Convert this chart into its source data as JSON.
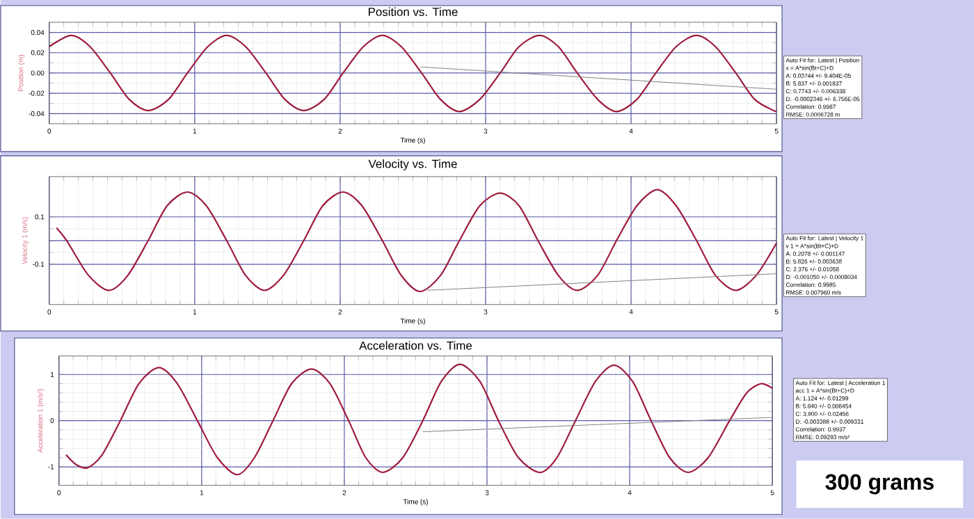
{
  "chart_data": [
    {
      "type": "line",
      "title": "Position vs. Time",
      "xlabel": "Time (s)",
      "ylabel": "Position (m)",
      "xlim": [
        0,
        5
      ],
      "xticks": [
        0,
        1,
        2,
        3,
        4,
        5
      ],
      "ylim": [
        -0.05,
        0.05
      ],
      "yticks": [
        -0.04,
        -0.02,
        {
          "value": 0,
          "label": "0.00"
        },
        0.02,
        0.04
      ],
      "grid": true,
      "marker": "none",
      "line_style": "solid",
      "series": [
        {
          "color": "#9e1b3c",
          "x": [
            0,
            0.15,
            0.28,
            0.42,
            0.55,
            0.68,
            0.82,
            0.95,
            1.09,
            1.22,
            1.35,
            1.49,
            1.62,
            1.75,
            1.89,
            2.02,
            2.16,
            2.29,
            2.42,
            2.56,
            2.69,
            2.82,
            2.96,
            3.1,
            3.23,
            3.37,
            3.5,
            3.63,
            3.77,
            3.9,
            4.04,
            4.17,
            4.31,
            4.45,
            4.58,
            4.72,
            4.85,
            4.98,
            5.0
          ],
          "values": [
            0.026,
            0.037,
            0.026,
            0.0,
            -0.026,
            -0.037,
            -0.026,
            0.0,
            0.026,
            0.037,
            0.026,
            0.0,
            -0.026,
            -0.037,
            -0.026,
            0.0,
            0.026,
            0.037,
            0.026,
            0.0,
            -0.026,
            -0.038,
            -0.026,
            0.0,
            0.026,
            0.037,
            0.026,
            0.0,
            -0.026,
            -0.038,
            -0.026,
            0.0,
            0.026,
            0.037,
            0.026,
            0.0,
            -0.026,
            -0.037,
            -0.037
          ]
        },
        {
          "color": "#808080",
          "x": [
            2.55,
            5.0
          ],
          "values": [
            0.006,
            -0.016
          ]
        }
      ],
      "annotations": [
        "Auto Fit for: Latest | Position",
        "x = A*sin(Bt+C)+D",
        "A: 0.03744 +/- 9.404E-05",
        "B: 5.837 +/- 0.001837",
        "C: 0.7743 +/- 0.006338",
        "D: -0.0002346 +/- 6.756E-05",
        "Correlation: 0.9987",
        "RMSE: 0.0006728 m"
      ]
    },
    {
      "type": "line",
      "title": "Velocity vs. Time",
      "xlabel": "Time (s)",
      "ylabel": "Velocity 1 (m/s)",
      "xlim": [
        0,
        5
      ],
      "xticks": [
        0,
        1,
        2,
        3,
        4,
        5
      ],
      "ylim": [
        -0.27,
        0.27
      ],
      "yticks": [
        -0.1,
        {
          "value": 0,
          "label": null
        },
        0.1
      ],
      "grid": true,
      "marker": "none",
      "line_style": "solid",
      "series": [
        {
          "color": "#9e1b3c",
          "x": [
            0.05,
            0.12,
            0.27,
            0.41,
            0.54,
            0.68,
            0.81,
            0.95,
            1.08,
            1.22,
            1.35,
            1.48,
            1.61,
            1.75,
            1.88,
            2.02,
            2.15,
            2.29,
            2.42,
            2.55,
            2.69,
            2.82,
            2.96,
            3.1,
            3.23,
            3.36,
            3.5,
            3.63,
            3.77,
            3.9,
            4.04,
            4.18,
            4.31,
            4.45,
            4.58,
            4.72,
            4.86,
            5.0
          ],
          "values": [
            0.054,
            0.0,
            -0.147,
            -0.21,
            -0.147,
            0.0,
            0.147,
            0.205,
            0.147,
            0.0,
            -0.147,
            -0.21,
            -0.147,
            0.0,
            0.147,
            0.205,
            0.147,
            0.0,
            -0.147,
            -0.215,
            -0.147,
            0.0,
            0.147,
            0.2,
            0.147,
            0.0,
            -0.147,
            -0.21,
            -0.147,
            0.0,
            0.147,
            0.215,
            0.147,
            0.0,
            -0.147,
            -0.21,
            -0.147,
            -0.01
          ]
        },
        {
          "color": "#808080",
          "x": [
            2.6,
            5.0
          ],
          "values": [
            -0.21,
            -0.14
          ]
        }
      ],
      "annotations": [
        "Auto Fit for: Latest | Velocity 1",
        "v 1 = A*sin(Bt+C)+D",
        "A: 0.2078 +/- 0.001147",
        "B: 5.826 +/- 0.003638",
        "C: 2.376 +/- 0.01058",
        "D: -0.001050 +/- 0.0008034",
        "Correlation: 0.9985",
        "RMSE: 0.007960 m/s"
      ]
    },
    {
      "type": "line",
      "title": "Acceleration vs. Time",
      "xlabel": "Time (s)",
      "ylabel": "Acceleration 1 (m/s²)",
      "xlim": [
        0,
        5
      ],
      "xticks": [
        0,
        1,
        2,
        3,
        4,
        5
      ],
      "ylim": [
        -1.4,
        1.4
      ],
      "yticks": [
        -1,
        0,
        1
      ],
      "grid": true,
      "marker": "none",
      "line_style": "solid",
      "series": [
        {
          "color": "#9e1b3c",
          "x": [
            0.05,
            0.12,
            0.2,
            0.3,
            0.43,
            0.56,
            0.7,
            0.83,
            0.97,
            1.11,
            1.25,
            1.37,
            1.5,
            1.63,
            1.77,
            1.9,
            2.03,
            2.15,
            2.27,
            2.41,
            2.55,
            2.68,
            2.81,
            2.95,
            3.08,
            3.22,
            3.37,
            3.49,
            3.62,
            3.76,
            3.89,
            4.02,
            4.15,
            4.28,
            4.41,
            4.55,
            4.7,
            4.82,
            4.92,
            5.0
          ],
          "values": [
            -0.74,
            -0.95,
            -1.02,
            -0.75,
            0.0,
            0.8,
            1.15,
            0.8,
            0.0,
            -0.8,
            -1.17,
            -0.8,
            0.0,
            0.8,
            1.12,
            0.8,
            0.0,
            -0.8,
            -1.12,
            -0.8,
            0.0,
            0.85,
            1.22,
            0.85,
            0.0,
            -0.8,
            -1.12,
            -0.8,
            0.0,
            0.85,
            1.2,
            0.85,
            0.0,
            -0.8,
            -1.12,
            -0.8,
            0.0,
            0.6,
            0.8,
            0.7
          ]
        },
        {
          "color": "#808080",
          "x": [
            2.55,
            5.0
          ],
          "values": [
            -0.24,
            0.07
          ]
        }
      ],
      "annotations": [
        "Auto Fit for: Latest | Acceleration 1",
        "acc 1 = A*sin(Bt+C)+D",
        "A: 1.124 +/- 0.01299",
        "B: 5.840 +/- 0.008454",
        "C: 3.900 +/- 0.02456",
        "D: -0.003388 +/- 0.009331",
        "Correlation: 0.9937",
        "RMSE: 0.09293 m/s²",
        "300 grams"
      ]
    }
  ]
}
